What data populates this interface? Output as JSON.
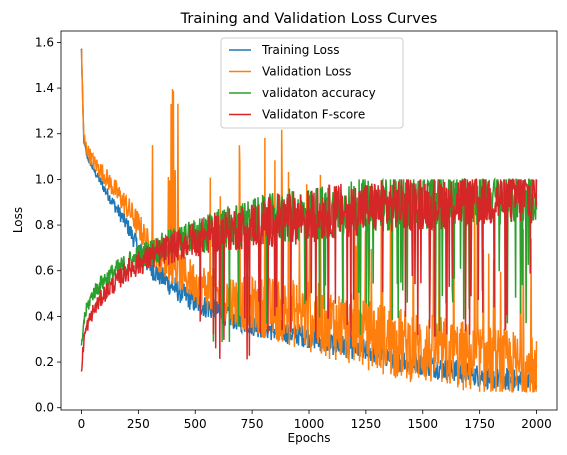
{
  "chart_data": {
    "type": "line",
    "title": "Training and Validation Loss Curves",
    "xlabel": "Epochs",
    "ylabel": "Loss",
    "xlim": [
      -90,
      2090
    ],
    "ylim": [
      -0.01,
      1.65
    ],
    "xticks": [
      0,
      250,
      500,
      750,
      1000,
      1250,
      1500,
      1750,
      2000
    ],
    "yticks": [
      0.0,
      0.2,
      0.4,
      0.6,
      0.8,
      1.0,
      1.2,
      1.4,
      1.6
    ],
    "grid": false,
    "legend_position": "top-center",
    "series": [
      {
        "name": "Training Loss",
        "color": "#1f77b4",
        "x": [
          0,
          10,
          25,
          50,
          100,
          150,
          200,
          250,
          300,
          400,
          500,
          600,
          700,
          800,
          900,
          1000,
          1100,
          1200,
          1300,
          1400,
          1500,
          1600,
          1700,
          1800,
          1900,
          2000
        ],
        "y": [
          1.57,
          1.17,
          1.1,
          1.05,
          0.96,
          0.88,
          0.8,
          0.7,
          0.62,
          0.53,
          0.46,
          0.42,
          0.38,
          0.35,
          0.33,
          0.31,
          0.28,
          0.26,
          0.24,
          0.21,
          0.19,
          0.17,
          0.15,
          0.13,
          0.12,
          0.11
        ]
      },
      {
        "name": "Validation Loss",
        "color": "#ff7f0e",
        "x": [
          0,
          10,
          25,
          50,
          100,
          150,
          200,
          250,
          300,
          400,
          500,
          600,
          700,
          800,
          900,
          1000,
          1100,
          1200,
          1300,
          1400,
          1500,
          1600,
          1700,
          1800,
          1900,
          2000
        ],
        "y": [
          1.55,
          1.18,
          1.13,
          1.08,
          1.02,
          0.95,
          0.88,
          0.8,
          0.7,
          0.62,
          0.55,
          0.5,
          0.46,
          0.44,
          0.42,
          0.4,
          0.37,
          0.34,
          0.31,
          0.28,
          0.26,
          0.24,
          0.22,
          0.2,
          0.18,
          0.15
        ]
      },
      {
        "name": "validaton accuracy",
        "color": "#2ca02c",
        "x": [
          0,
          10,
          25,
          50,
          100,
          150,
          200,
          250,
          300,
          400,
          500,
          600,
          700,
          800,
          900,
          1000,
          1100,
          1200,
          1300,
          1400,
          1500,
          1600,
          1700,
          1800,
          1900,
          2000
        ],
        "y": [
          0.25,
          0.38,
          0.44,
          0.5,
          0.56,
          0.6,
          0.63,
          0.66,
          0.68,
          0.72,
          0.75,
          0.78,
          0.8,
          0.82,
          0.84,
          0.85,
          0.86,
          0.88,
          0.89,
          0.9,
          0.9,
          0.91,
          0.91,
          0.92,
          0.92,
          0.93
        ]
      },
      {
        "name": "Validaton F-score",
        "color": "#d62728",
        "x": [
          0,
          10,
          25,
          50,
          100,
          150,
          200,
          250,
          300,
          400,
          500,
          600,
          700,
          800,
          900,
          1000,
          1100,
          1200,
          1300,
          1400,
          1500,
          1600,
          1700,
          1800,
          1900,
          2000
        ],
        "y": [
          0.15,
          0.3,
          0.36,
          0.42,
          0.5,
          0.55,
          0.6,
          0.63,
          0.66,
          0.7,
          0.74,
          0.77,
          0.79,
          0.81,
          0.83,
          0.84,
          0.86,
          0.87,
          0.88,
          0.89,
          0.9,
          0.9,
          0.91,
          0.91,
          0.92,
          0.92
        ]
      }
    ]
  }
}
